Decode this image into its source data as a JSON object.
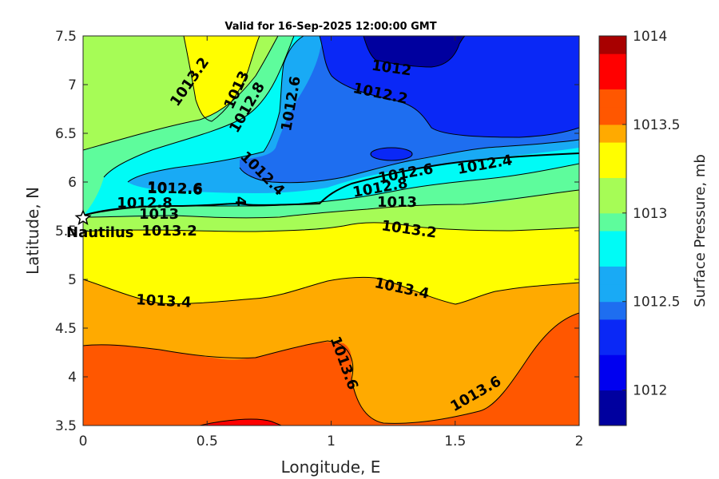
{
  "chart_data": {
    "type": "contour",
    "title": "Valid for 16-Sep-2025 12:00:00 GMT",
    "xlabel": "Longitude, E",
    "ylabel": "Latitude, N",
    "xlim": [
      0,
      2
    ],
    "ylim": [
      3.5,
      7.5
    ],
    "xticks": [
      "0",
      "0.5",
      "1",
      "1.5",
      "2"
    ],
    "yticks": [
      "3.5",
      "4",
      "4.5",
      "5",
      "5.5",
      "6",
      "6.5",
      "7",
      "7.5"
    ],
    "colorbar": {
      "label": "Surface Pressure, mb",
      "range": [
        1011.8,
        1014.0
      ],
      "ticks": [
        "1012",
        "1012.5",
        "1013",
        "1013.5",
        "1014"
      ],
      "levels": [
        1011.8,
        1011.9,
        1012.0,
        1012.1,
        1012.2,
        1012.3,
        1012.4,
        1012.5,
        1012.6,
        1012.7,
        1012.8,
        1012.9,
        1013.0,
        1013.1,
        1013.2,
        1013.3,
        1013.4,
        1013.5,
        1013.6,
        1013.7,
        1013.8,
        1013.9,
        1014.0
      ],
      "colors": [
        "#00009f",
        "#0000f0",
        "#0a28f6",
        "#1e6ef0",
        "#19aaf5",
        "#00fbf6",
        "#5efc9c",
        "#a6fc56",
        "#fffe00",
        "#ffaa00",
        "#ff5700",
        "#ff0000",
        "#a80000"
      ]
    },
    "contour_labels": [
      "1012",
      "1012.2",
      "1012.4",
      "1012.6",
      "1012.8",
      "1013",
      "1013.2",
      "1013.4",
      "1013.6",
      "1012.4",
      "1012.6",
      "1012.8",
      "1013",
      "1013.2",
      "1013.4",
      "1013.6",
      "1013.2",
      "1013",
      "1012.8",
      "1012.6",
      "1012.6",
      "1012.8",
      "1013",
      "1013.2",
      "4"
    ],
    "marker": {
      "name": "Nautilus",
      "lon": 0.0,
      "lat": 5.63
    }
  }
}
